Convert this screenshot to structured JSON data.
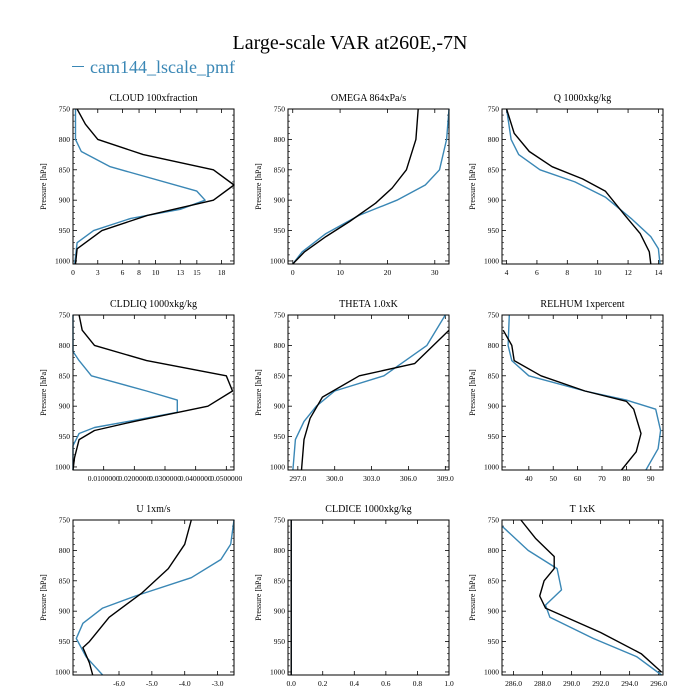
{
  "figure": {
    "title": "Large-scale VAR at260E,-7N",
    "legend": "cam144_lscale_pmf",
    "series_colors": {
      "cam144_lscale_pmf": "#3a87b5",
      "reference": "#000000"
    },
    "ylabel": "Pressure [hPa]",
    "yticks": [
      750,
      800,
      850,
      900,
      950,
      1000
    ]
  },
  "chart_data": [
    {
      "type": "line",
      "title": "CLOUD 100xfraction",
      "xlim": [
        0,
        19.5
      ],
      "ylim": [
        1005,
        750
      ],
      "y_inverted": true,
      "xticks": [
        0,
        3,
        6,
        8,
        10,
        13,
        15,
        18
      ],
      "xtick_labels": [
        "0",
        "3",
        "6",
        "8",
        "10",
        "13",
        "15",
        "18"
      ],
      "series": [
        {
          "color": "#3a87b5",
          "points": [
            [
              0.3,
              750
            ],
            [
              0.3,
              800
            ],
            [
              1.0,
              820
            ],
            [
              4.5,
              845
            ],
            [
              15.0,
              885
            ],
            [
              16.0,
              900
            ],
            [
              13.0,
              915
            ],
            [
              7.0,
              930
            ],
            [
              2.5,
              950
            ],
            [
              0.5,
              970
            ],
            [
              0.2,
              1005
            ]
          ]
        },
        {
          "color": "#000000",
          "points": [
            [
              0.5,
              750
            ],
            [
              1.5,
              775
            ],
            [
              3.0,
              800
            ],
            [
              8.5,
              825
            ],
            [
              17.0,
              850
            ],
            [
              19.5,
              875
            ],
            [
              17.0,
              900
            ],
            [
              9.0,
              925
            ],
            [
              3.5,
              950
            ],
            [
              0.5,
              980
            ],
            [
              0.3,
              1005
            ]
          ]
        }
      ]
    },
    {
      "type": "line",
      "title": "OMEGA 864xPa/s",
      "xlim": [
        -1,
        33
      ],
      "ylim": [
        1005,
        750
      ],
      "y_inverted": true,
      "xticks": [
        0,
        10,
        20,
        30
      ],
      "xtick_labels": [
        "0",
        "10",
        "20",
        "30"
      ],
      "series": [
        {
          "color": "#3a87b5",
          "points": [
            [
              33,
              750
            ],
            [
              32.5,
              800
            ],
            [
              31,
              850
            ],
            [
              28,
              875
            ],
            [
              22,
              900
            ],
            [
              14,
              925
            ],
            [
              7,
              955
            ],
            [
              2,
              985
            ],
            [
              0,
              1005
            ]
          ]
        },
        {
          "color": "#000000",
          "points": [
            [
              26.5,
              750
            ],
            [
              26,
              800
            ],
            [
              24,
              850
            ],
            [
              21,
              880
            ],
            [
              17.5,
              905
            ],
            [
              12,
              935
            ],
            [
              7,
              960
            ],
            [
              2.5,
              985
            ],
            [
              0,
              1005
            ]
          ]
        }
      ]
    },
    {
      "type": "line",
      "title": "Q 1000xkg/kg",
      "xlim": [
        3.7,
        14.3
      ],
      "ylim": [
        1005,
        750
      ],
      "y_inverted": true,
      "xticks": [
        4,
        6,
        8,
        10,
        12,
        14
      ],
      "xtick_labels": [
        "4",
        "6",
        "8",
        "10",
        "12",
        "14"
      ],
      "series": [
        {
          "color": "#3a87b5",
          "points": [
            [
              4.0,
              750
            ],
            [
              4.3,
              800
            ],
            [
              4.8,
              825
            ],
            [
              6.2,
              850
            ],
            [
              8.5,
              870
            ],
            [
              10.5,
              895
            ],
            [
              12.2,
              930
            ],
            [
              13.5,
              960
            ],
            [
              14.0,
              980
            ],
            [
              14.1,
              1005
            ]
          ]
        },
        {
          "color": "#000000",
          "points": [
            [
              4.0,
              750
            ],
            [
              4.5,
              790
            ],
            [
              5.5,
              820
            ],
            [
              7.0,
              845
            ],
            [
              9.0,
              865
            ],
            [
              10.5,
              885
            ],
            [
              11.8,
              925
            ],
            [
              12.8,
              955
            ],
            [
              13.4,
              985
            ],
            [
              13.5,
              1005
            ]
          ]
        }
      ]
    },
    {
      "type": "line",
      "title": "CLDLIQ 1000xkg/kg",
      "xlim": [
        0,
        0.0525
      ],
      "ylim": [
        1005,
        750
      ],
      "y_inverted": true,
      "xticks": [
        0.01,
        0.02,
        0.03,
        0.04,
        0.05
      ],
      "xtick_labels": [
        "0.0100000",
        "0.0200000",
        "0.0300000",
        "0.0400000",
        "0.0500000"
      ],
      "series": [
        {
          "color": "#3a87b5",
          "points": [
            [
              0,
              750
            ],
            [
              0,
              810
            ],
            [
              0.002,
              825
            ],
            [
              0.006,
              850
            ],
            [
              0.024,
              875
            ],
            [
              0.034,
              890
            ],
            [
              0.034,
              910
            ],
            [
              0.018,
              925
            ],
            [
              0.007,
              935
            ],
            [
              0.002,
              945
            ],
            [
              0,
              965
            ],
            [
              0,
              1005
            ]
          ]
        },
        {
          "color": "#000000",
          "points": [
            [
              0.002,
              750
            ],
            [
              0.003,
              775
            ],
            [
              0.007,
              800
            ],
            [
              0.024,
              825
            ],
            [
              0.05,
              850
            ],
            [
              0.052,
              875
            ],
            [
              0.044,
              900
            ],
            [
              0.02,
              925
            ],
            [
              0.007,
              940
            ],
            [
              0.002,
              955
            ],
            [
              0.0005,
              985
            ],
            [
              0,
              1005
            ]
          ]
        }
      ]
    },
    {
      "type": "line",
      "title": "THETA 1.0xK",
      "xlim": [
        296.2,
        309.3
      ],
      "ylim": [
        1005,
        750
      ],
      "y_inverted": true,
      "xticks": [
        297.0,
        300.0,
        303.0,
        306.0,
        309.0
      ],
      "xtick_labels": [
        "297.0",
        "300.0",
        "303.0",
        "306.0",
        "309.0"
      ],
      "series": [
        {
          "color": "#3a87b5",
          "points": [
            [
              309,
              750
            ],
            [
              307.5,
              800
            ],
            [
              304,
              850
            ],
            [
              300,
              875
            ],
            [
              298.5,
              900
            ],
            [
              297.5,
              925
            ],
            [
              296.8,
              955
            ],
            [
              296.6,
              1005
            ]
          ]
        },
        {
          "color": "#000000",
          "points": [
            [
              309.3,
              775
            ],
            [
              306.5,
              830
            ],
            [
              302,
              850
            ],
            [
              299,
              885
            ],
            [
              298,
              920
            ],
            [
              297.5,
              955
            ],
            [
              297.3,
              1005
            ]
          ]
        }
      ]
    },
    {
      "type": "line",
      "title": "RELHUM 1xpercent",
      "xlim": [
        29,
        95
      ],
      "ylim": [
        1005,
        750
      ],
      "y_inverted": true,
      "xticks": [
        40,
        50,
        60,
        70,
        80,
        90
      ],
      "xtick_labels": [
        "40",
        "50",
        "60",
        "70",
        "80",
        "90"
      ],
      "series": [
        {
          "color": "#3a87b5",
          "points": [
            [
              32,
              750
            ],
            [
              31.5,
              800
            ],
            [
              33,
              825
            ],
            [
              40,
              850
            ],
            [
              63,
              875
            ],
            [
              80,
              890
            ],
            [
              92,
              905
            ],
            [
              94,
              940
            ],
            [
              93,
              970
            ],
            [
              88,
              1005
            ]
          ]
        },
        {
          "color": "#000000",
          "points": [
            [
              29.5,
              775
            ],
            [
              33,
              800
            ],
            [
              34,
              825
            ],
            [
              45,
              850
            ],
            [
              63,
              875
            ],
            [
              80,
              892
            ],
            [
              83,
              905
            ],
            [
              86,
              945
            ],
            [
              84,
              975
            ],
            [
              78,
              1005
            ]
          ]
        }
      ]
    },
    {
      "type": "line",
      "title": "U 1xm/s",
      "xlim": [
        -7.4,
        -2.5
      ],
      "ylim": [
        1005,
        750
      ],
      "y_inverted": true,
      "xticks": [
        -6.0,
        -5.0,
        -4.0,
        -3.0
      ],
      "xtick_labels": [
        "-6.0",
        "-5.0",
        "-4.0",
        "-3.0"
      ],
      "series": [
        {
          "color": "#3a87b5",
          "points": [
            [
              -2.5,
              750
            ],
            [
              -2.6,
              790
            ],
            [
              -2.9,
              815
            ],
            [
              -3.8,
              845
            ],
            [
              -5.5,
              875
            ],
            [
              -6.5,
              895
            ],
            [
              -7.1,
              920
            ],
            [
              -7.3,
              945
            ],
            [
              -7.0,
              975
            ],
            [
              -6.5,
              1005
            ]
          ]
        },
        {
          "color": "#000000",
          "points": [
            [
              -3.8,
              750
            ],
            [
              -4.0,
              790
            ],
            [
              -4.5,
              830
            ],
            [
              -5.3,
              870
            ],
            [
              -6.3,
              910
            ],
            [
              -6.9,
              950
            ],
            [
              -7.1,
              960
            ],
            [
              -6.9,
              985
            ],
            [
              -6.8,
              1005
            ]
          ]
        }
      ]
    },
    {
      "type": "line",
      "title": "CLDICE 1000xkg/kg",
      "xlim": [
        -0.02,
        1.0
      ],
      "ylim": [
        1005,
        750
      ],
      "y_inverted": true,
      "xticks": [
        0.0,
        0.2,
        0.4,
        0.6,
        0.8,
        1.0
      ],
      "xtick_labels": [
        "0.0",
        "0.2",
        "0.4",
        "0.6",
        "0.8",
        "1.0"
      ],
      "series": [
        {
          "color": "#3a87b5",
          "points": [
            [
              0,
              750
            ],
            [
              0,
              1005
            ]
          ]
        },
        {
          "color": "#000000",
          "points": [
            [
              0,
              750
            ],
            [
              0,
              1005
            ]
          ]
        }
      ]
    },
    {
      "type": "line",
      "title": "T 1xK",
      "xlim": [
        285.2,
        296.3
      ],
      "ylim": [
        1005,
        750
      ],
      "y_inverted": true,
      "xticks": [
        286.0,
        288.0,
        290.0,
        292.0,
        294.0,
        296.0
      ],
      "xtick_labels": [
        "286.0",
        "288.0",
        "290.0",
        "292.0",
        "294.0",
        "296.0"
      ],
      "series": [
        {
          "color": "#3a87b5",
          "points": [
            [
              285.2,
              760
            ],
            [
              287.0,
              800
            ],
            [
              289.0,
              830
            ],
            [
              289.3,
              865
            ],
            [
              288.2,
              890
            ],
            [
              288.5,
              910
            ],
            [
              291.5,
              945
            ],
            [
              294.5,
              975
            ],
            [
              296.2,
              1005
            ]
          ]
        },
        {
          "color": "#000000",
          "points": [
            [
              286.5,
              750
            ],
            [
              287.5,
              780
            ],
            [
              288.8,
              810
            ],
            [
              288.8,
              830
            ],
            [
              288.1,
              850
            ],
            [
              287.8,
              875
            ],
            [
              288.2,
              895
            ],
            [
              292,
              935
            ],
            [
              294.8,
              970
            ],
            [
              296.2,
              1000
            ]
          ]
        }
      ]
    }
  ]
}
